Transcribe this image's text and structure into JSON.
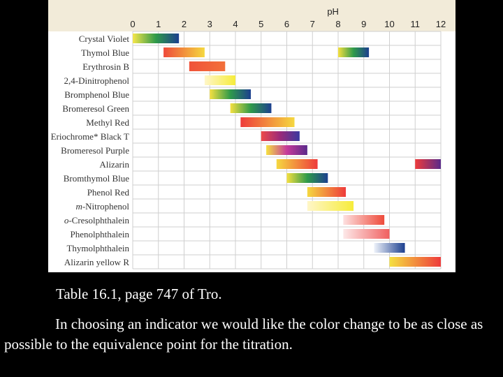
{
  "chart_data": {
    "type": "bar",
    "subtype": "range",
    "title": "",
    "xlabel": "pH",
    "ylabel": "",
    "xlim": [
      0,
      12
    ],
    "x_ticks": [
      "0",
      "1",
      "2",
      "3",
      "4",
      "5",
      "6",
      "7",
      "8",
      "9",
      "10",
      "11",
      "12"
    ],
    "grid": true,
    "header_color": "#f2ebd9",
    "categories": [
      "Crystal Violet",
      "Thymol Blue",
      "Erythrosin B",
      "2,4-Dinitrophenol",
      "Bromphenol Blue",
      "Bromeresol Green",
      "Methyl Red",
      "Eriochrome* Black T",
      "Bromeresol Purple",
      "Alizarin",
      "Bromthymol Blue",
      "Phenol Red",
      "m-Nitrophenol",
      "o-Cresolphthalein",
      "Phenolphthalein",
      "Thymolphthalein",
      "Alizarin yellow R"
    ],
    "ranges": [
      {
        "indicator": "Crystal Violet",
        "start": 0.0,
        "end": 1.8,
        "colors": [
          "#f5e64a",
          "#2f9a4a",
          "#1c3f8f"
        ]
      },
      {
        "indicator": "Thymol Blue",
        "start": 1.2,
        "end": 2.8,
        "colors": [
          "#ee4a3a",
          "#f5d840"
        ]
      },
      {
        "indicator": "Thymol Blue",
        "start": 8.0,
        "end": 9.2,
        "colors": [
          "#f5e040",
          "#2f9a4a",
          "#1c3f8f"
        ]
      },
      {
        "indicator": "Erythrosin B",
        "start": 2.2,
        "end": 3.6,
        "colors": [
          "#f0533a",
          "#f2703a"
        ]
      },
      {
        "indicator": "2,4-Dinitrophenol",
        "start": 2.8,
        "end": 4.0,
        "colors": [
          "#fff6c8",
          "#f6ec3a"
        ]
      },
      {
        "indicator": "Bromphenol Blue",
        "start": 3.0,
        "end": 4.6,
        "colors": [
          "#f5e040",
          "#2f9a4a",
          "#1c3f8f"
        ]
      },
      {
        "indicator": "Bromeresol Green",
        "start": 3.8,
        "end": 5.4,
        "colors": [
          "#f5e040",
          "#2f9a4a",
          "#1c3f8f"
        ]
      },
      {
        "indicator": "Methyl Red",
        "start": 4.2,
        "end": 6.3,
        "colors": [
          "#ee3b3b",
          "#f5d840"
        ]
      },
      {
        "indicator": "Eriochrome* Black T",
        "start": 5.0,
        "end": 6.5,
        "colors": [
          "#ee4a4a",
          "#9a2a7a",
          "#3a3aa0"
        ]
      },
      {
        "indicator": "Bromeresol Purple",
        "start": 5.2,
        "end": 6.8,
        "colors": [
          "#f5e040",
          "#c63a9a",
          "#5a2a8a"
        ]
      },
      {
        "indicator": "Alizarin",
        "start": 5.6,
        "end": 7.2,
        "colors": [
          "#f5d840",
          "#ee3b3b"
        ]
      },
      {
        "indicator": "Alizarin",
        "start": 11.0,
        "end": 12.0,
        "colors": [
          "#ee3b3b",
          "#5a2a8a"
        ]
      },
      {
        "indicator": "Bromthymol Blue",
        "start": 6.0,
        "end": 7.6,
        "colors": [
          "#f5e040",
          "#2f9a4a",
          "#1c3f8f"
        ]
      },
      {
        "indicator": "Phenol Red",
        "start": 6.8,
        "end": 8.3,
        "colors": [
          "#f5d840",
          "#ee3b3b"
        ]
      },
      {
        "indicator": "m-Nitrophenol",
        "start": 6.8,
        "end": 8.6,
        "colors": [
          "#fff6c8",
          "#f6ec3a"
        ]
      },
      {
        "indicator": "o-Cresolphthalein",
        "start": 8.2,
        "end": 9.8,
        "colors": [
          "#fde0e0",
          "#ee4a3a"
        ]
      },
      {
        "indicator": "Phenolphthalein",
        "start": 8.2,
        "end": 10.0,
        "colors": [
          "#fde8e8",
          "#f06060"
        ]
      },
      {
        "indicator": "Thymolphthalein",
        "start": 9.4,
        "end": 10.6,
        "colors": [
          "#eef2fa",
          "#1c3f8f"
        ]
      },
      {
        "indicator": "Alizarin yellow R",
        "start": 10.0,
        "end": 12.0,
        "colors": [
          "#f5e040",
          "#ee3b3b"
        ]
      }
    ]
  },
  "caption": {
    "reference": "Table 16.1, page 747 of Tro.",
    "note": "In choosing an indicator we would like the color change to be as close as possible to the equivalence point for the titration."
  }
}
